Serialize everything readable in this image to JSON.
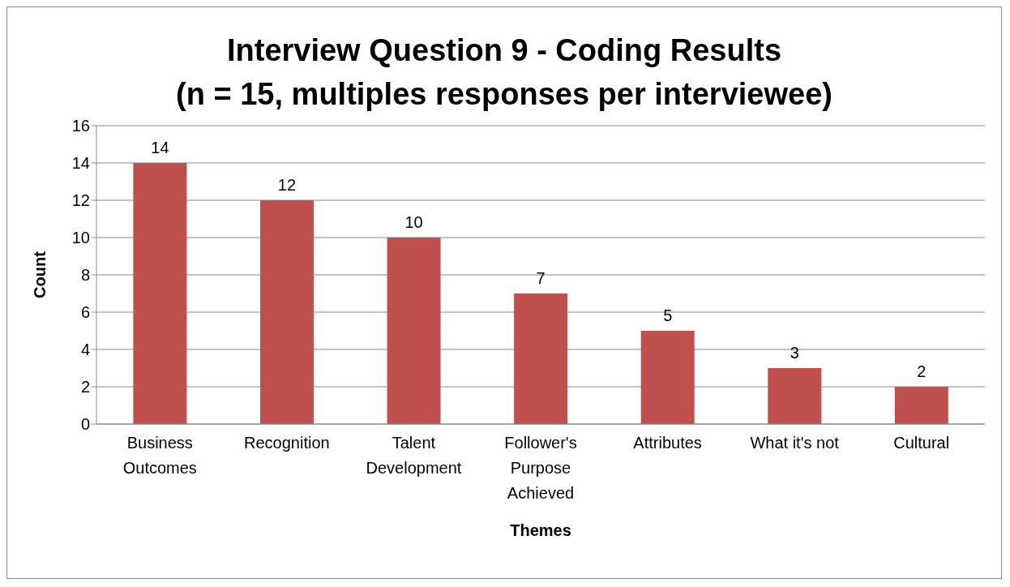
{
  "chart_data": {
    "type": "bar",
    "title": "Interview Question 9 - Coding Results",
    "subtitle": "(n = 15, multiples responses per interviewee)",
    "xlabel": "Themes",
    "ylabel": "Count",
    "categories": [
      "Business Outcomes",
      "Recognition",
      "Talent Development",
      "Follower's Purpose Achieved",
      "Attributes",
      "What it's not",
      "Cultural"
    ],
    "values": [
      14,
      12,
      10,
      7,
      5,
      3,
      2
    ],
    "color": "#c0504d",
    "ylim": [
      0,
      16
    ],
    "yticks": [
      0,
      2,
      4,
      6,
      8,
      10,
      12,
      14,
      16
    ],
    "grid": "y",
    "data_labels": true
  }
}
